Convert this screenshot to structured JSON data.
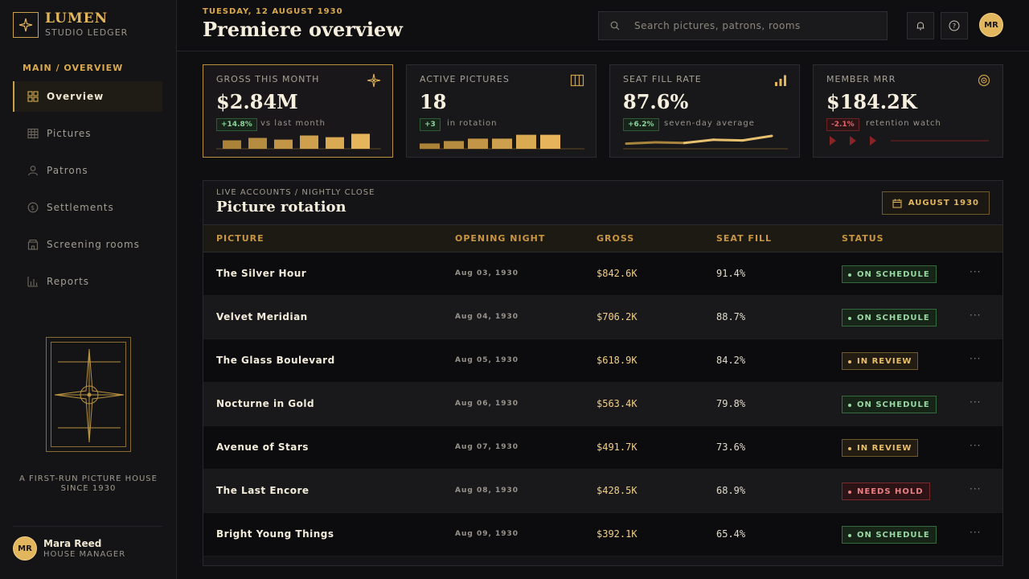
{
  "brand": {
    "name": "LUMEN",
    "sub": "STUDIO LEDGER"
  },
  "sidebar": {
    "section": "MAIN / OVERVIEW",
    "items": [
      {
        "label": "Overview",
        "icon": "grid-icon"
      },
      {
        "label": "Pictures",
        "icon": "table-icon"
      },
      {
        "label": "Patrons",
        "icon": "user-icon"
      },
      {
        "label": "Settlements",
        "icon": "coin-icon"
      },
      {
        "label": "Screening rooms",
        "icon": "building-icon"
      },
      {
        "label": "Reports",
        "icon": "bar-chart-icon"
      }
    ],
    "tagline": "A FIRST-RUN PICTURE HOUSE SINCE 1930",
    "user": {
      "initials": "MR",
      "name": "Mara Reed",
      "role": "HOUSE MANAGER"
    }
  },
  "header": {
    "date": "TUESDAY, 12 AUGUST 1930",
    "title": "Premiere overview",
    "search_placeholder": "Search pictures, patrons, rooms",
    "avatar_initials": "MR"
  },
  "kpis": [
    {
      "label": "GROSS THIS MONTH",
      "value": "$2.84M",
      "delta": "+14.8%",
      "delta_dir": "up",
      "note": "vs last month",
      "icon": "sparkle-icon",
      "spark": [
        0.35,
        0.45,
        0.38,
        0.55,
        0.48,
        0.62
      ]
    },
    {
      "label": "ACTIVE PICTURES",
      "value": "18",
      "delta": "+3",
      "delta_dir": "up",
      "note": "in rotation",
      "icon": "columns-icon",
      "spark": [
        0.22,
        0.32,
        0.42,
        0.42,
        0.58,
        0.58
      ]
    },
    {
      "label": "SEAT FILL RATE",
      "value": "87.6%",
      "delta": "+6.2%",
      "delta_dir": "up",
      "note": "seven-day average",
      "icon": "signal-icon",
      "spark": [
        0.15,
        0.25,
        0.2,
        0.45,
        0.4,
        0.75
      ]
    },
    {
      "label": "MEMBER MRR",
      "value": "$184.2K",
      "delta": "-2.1%",
      "delta_dir": "down",
      "note": "retention watch",
      "icon": "target-icon"
    }
  ],
  "panel": {
    "eyebrow": "LIVE ACCOUNTS / NIGHTLY CLOSE",
    "title": "Picture rotation",
    "month_button": "AUGUST 1930",
    "columns": [
      "PICTURE",
      "OPENING NIGHT",
      "GROSS",
      "SEAT FILL",
      "STATUS"
    ],
    "rows": [
      {
        "picture": "The Silver Hour",
        "opening": "Aug 03, 1930",
        "gross": "$842.6K",
        "fill": "91.4%",
        "status": "ON SCHEDULE",
        "kind": "ok"
      },
      {
        "picture": "Velvet Meridian",
        "opening": "Aug 04, 1930",
        "gross": "$706.2K",
        "fill": "88.7%",
        "status": "ON SCHEDULE",
        "kind": "ok"
      },
      {
        "picture": "The Glass Boulevard",
        "opening": "Aug 05, 1930",
        "gross": "$618.9K",
        "fill": "84.2%",
        "status": "IN REVIEW",
        "kind": "review"
      },
      {
        "picture": "Nocturne in Gold",
        "opening": "Aug 06, 1930",
        "gross": "$563.4K",
        "fill": "79.8%",
        "status": "ON SCHEDULE",
        "kind": "ok"
      },
      {
        "picture": "Avenue of Stars",
        "opening": "Aug 07, 1930",
        "gross": "$491.7K",
        "fill": "73.6%",
        "status": "IN REVIEW",
        "kind": "review"
      },
      {
        "picture": "The Last Encore",
        "opening": "Aug 08, 1930",
        "gross": "$428.5K",
        "fill": "68.9%",
        "status": "NEEDS HOLD",
        "kind": "hold"
      },
      {
        "picture": "Bright Young Things",
        "opening": "Aug 09, 1930",
        "gross": "$392.1K",
        "fill": "65.4%",
        "status": "ON SCHEDULE",
        "kind": "ok"
      }
    ],
    "more_label": "···"
  },
  "colors": {
    "accent": "#e2b65c",
    "bg": "#0f0f11",
    "ok": "#98d8a2",
    "review": "#e8c06a",
    "hold": "#ec7f82"
  }
}
